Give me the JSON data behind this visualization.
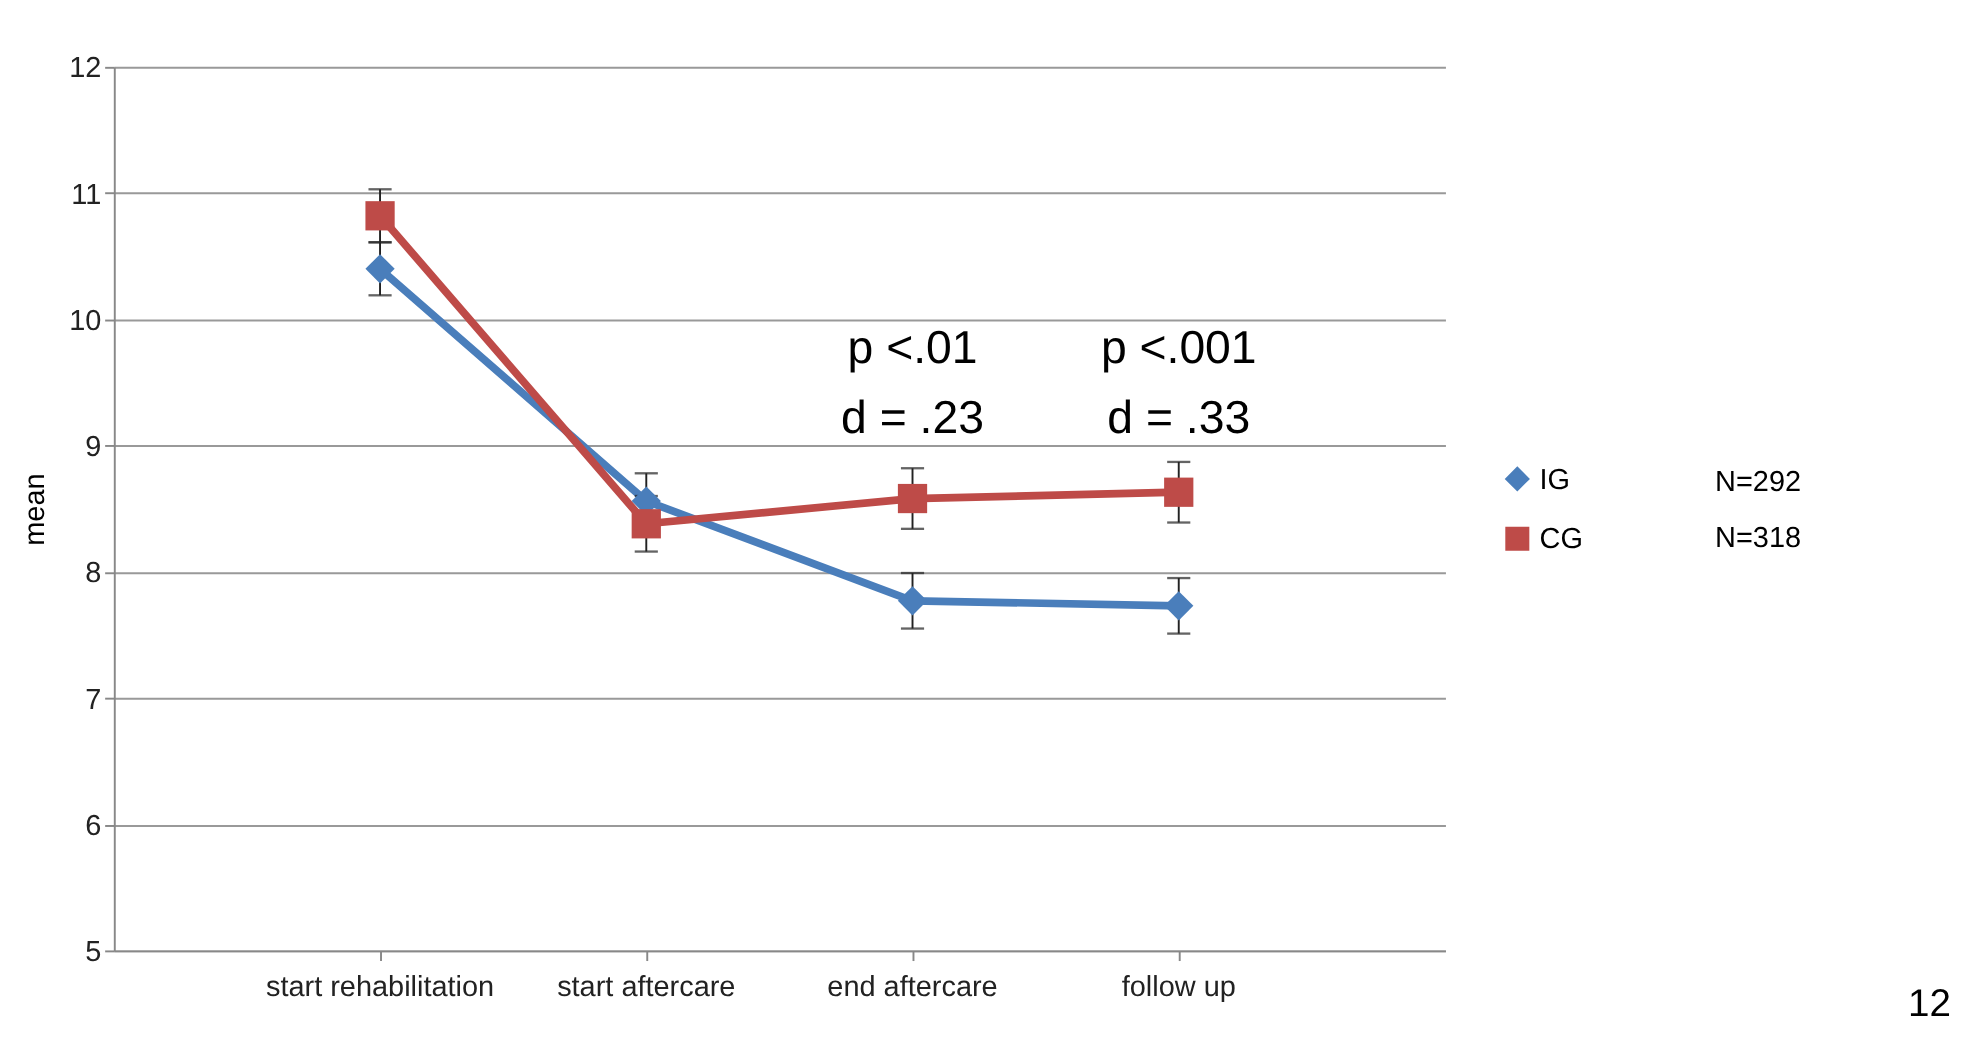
{
  "chart_data": {
    "type": "line",
    "ylabel": "mean",
    "categories": [
      "start rehabilitation",
      "start aftercare",
      "end aftercare",
      "follow up"
    ],
    "series": [
      {
        "name": "IG",
        "color": "#4a7ebb",
        "marker": "diamond",
        "values": [
          10.4,
          8.56,
          7.77,
          7.73
        ],
        "errors": [
          0.21,
          0.22,
          0.22,
          0.22
        ]
      },
      {
        "name": "CG",
        "color": "#be4b48",
        "marker": "square",
        "values": [
          10.82,
          8.38,
          8.58,
          8.63
        ],
        "errors": [
          0.21,
          0.22,
          0.24,
          0.24
        ]
      }
    ],
    "ylim": [
      5,
      12
    ],
    "yticks": [
      5,
      6,
      7,
      8,
      9,
      10,
      11,
      12
    ],
    "grid": "y",
    "legend": "right",
    "annotations": [
      "p <.01",
      "d = .23",
      "p <.001",
      "d = .33",
      "N=292",
      "N=318",
      "12"
    ]
  }
}
